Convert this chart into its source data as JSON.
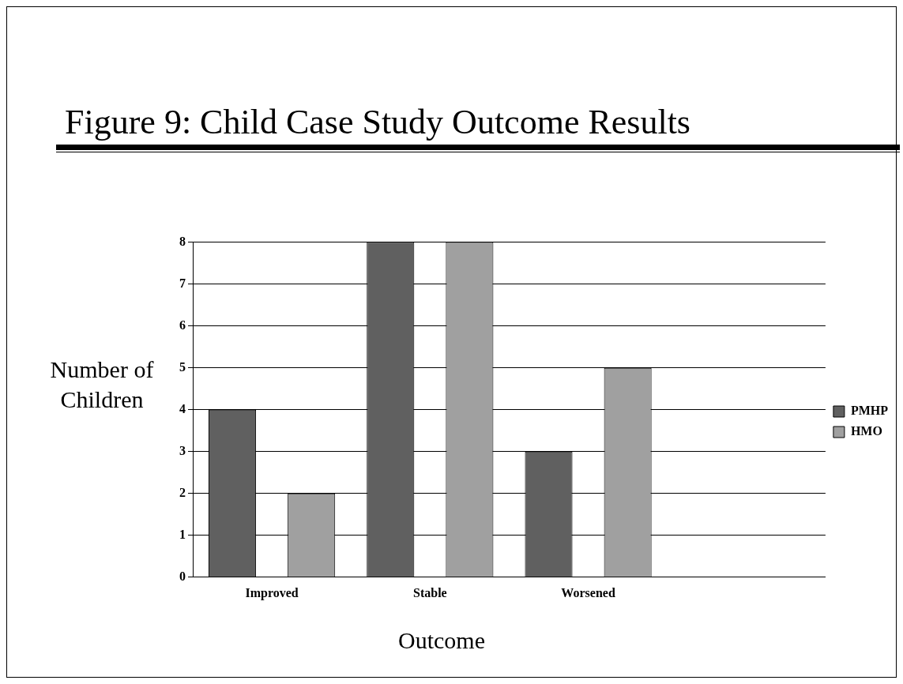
{
  "chart_data": {
    "type": "bar",
    "title": "Figure 9: Child Case Study Outcome Results",
    "xlabel": "Outcome",
    "ylabel": "Number of Children",
    "categories": [
      "Improved",
      "Stable",
      "Worsened",
      null
    ],
    "series": [
      {
        "name": "PMHP",
        "color": "#606060",
        "values": [
          4,
          8,
          3,
          null
        ]
      },
      {
        "name": "HMO",
        "color": "#a0a0a0",
        "values": [
          2,
          8,
          5,
          null
        ]
      }
    ],
    "ylim": [
      0,
      8
    ],
    "yticks": [
      0,
      1,
      2,
      3,
      4,
      5,
      6,
      7,
      8
    ],
    "grid": "y",
    "legend": "right"
  }
}
